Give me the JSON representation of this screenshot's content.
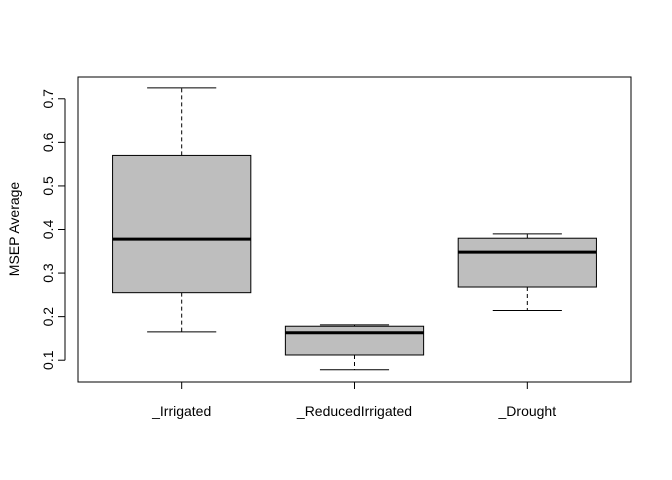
{
  "chart_data": {
    "type": "boxplot",
    "title": "",
    "xlabel": "",
    "ylabel": "MSEP Average",
    "ylim": [
      0.05,
      0.75
    ],
    "yticks": [
      0.1,
      0.2,
      0.3,
      0.4,
      0.5,
      0.6,
      0.7
    ],
    "ytick_labels": [
      "0.1",
      "0.2",
      "0.3",
      "0.4",
      "0.5",
      "0.6",
      "0.7"
    ],
    "grid": false,
    "legend": "none",
    "box_color": "#bebebe",
    "categories": [
      "_Irrigated",
      "_ReducedIrrigated",
      "_Drought"
    ],
    "boxes": [
      {
        "category": "_Irrigated",
        "min": 0.165,
        "q1": 0.255,
        "median": 0.378,
        "q3": 0.57,
        "max": 0.725
      },
      {
        "category": "_ReducedIrrigated",
        "min": 0.078,
        "q1": 0.112,
        "median": 0.163,
        "q3": 0.178,
        "max": 0.181
      },
      {
        "category": "_Drought",
        "min": 0.214,
        "q1": 0.268,
        "median": 0.348,
        "q3": 0.38,
        "max": 0.39
      }
    ]
  }
}
